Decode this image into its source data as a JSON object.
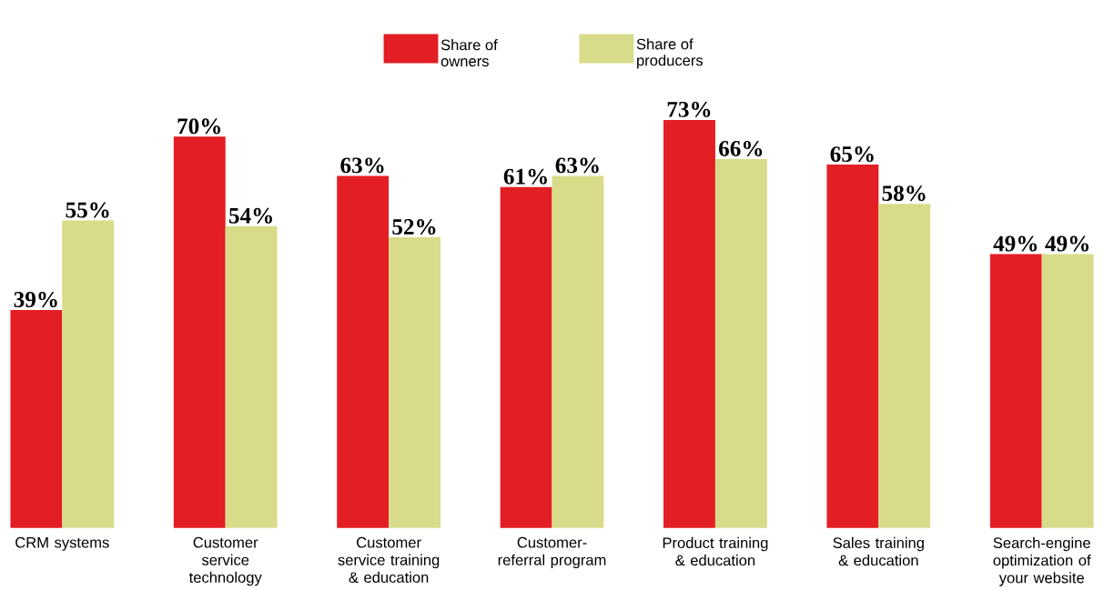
{
  "chart_data": {
    "type": "bar",
    "categories": [
      "CRM systems",
      "Customer service technology",
      "Customer service training & education",
      "Customer-referral program",
      "Product training & education",
      "Sales training & education",
      "Search-engine optimization of your website"
    ],
    "series": [
      {
        "name": "Share of owners",
        "color": "#e31e24",
        "values": [
          39,
          70,
          63,
          61,
          73,
          65,
          49
        ],
        "value_labels": [
          "39%",
          "70%",
          "63%",
          "61%",
          "73%",
          "65%",
          "49%"
        ]
      },
      {
        "name": "Share of producers",
        "color": "#d8dc8a",
        "values": [
          55,
          54,
          52,
          63,
          66,
          58,
          49
        ],
        "value_labels": [
          "55%",
          "54%",
          "52%",
          "63%",
          "66%",
          "58%",
          "49%"
        ]
      }
    ],
    "legend": "top"
  }
}
